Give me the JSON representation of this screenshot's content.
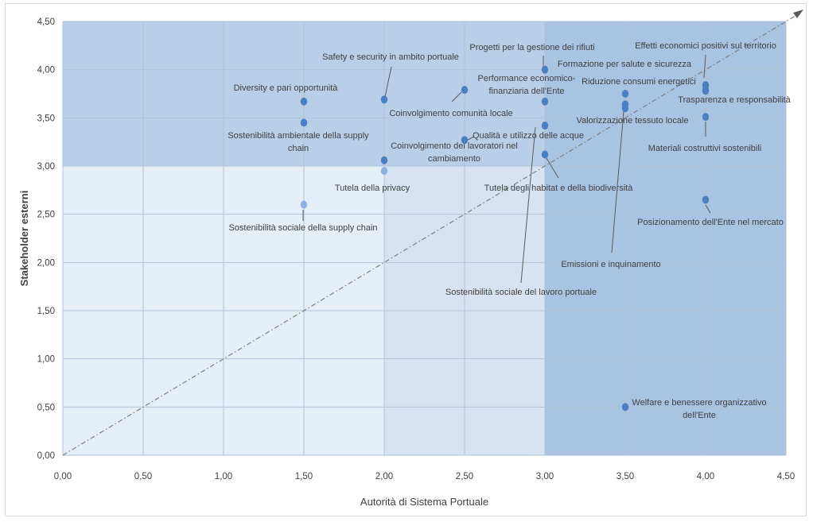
{
  "chart_data": {
    "type": "scatter",
    "xlabel": "Autorità di Sistema Portuale",
    "ylabel": "Stakeholder esterni",
    "xlim": [
      0,
      4.5
    ],
    "ylim": [
      0,
      4.5
    ],
    "x_ticks": [
      "0,00",
      "0,50",
      "1,00",
      "1,50",
      "2,00",
      "2,50",
      "3,00",
      "3,50",
      "4,00",
      "4,50"
    ],
    "y_ticks": [
      "0,00",
      "0,50",
      "1,00",
      "1,50",
      "2,00",
      "2,50",
      "3,00",
      "3,50",
      "4,00",
      "4,50"
    ],
    "grid": true,
    "diagonal_reference_line": true,
    "colors": {
      "background_light": "#e6eef8",
      "band_medium": "#c7d8ec",
      "band_dark": "#a9c3e2",
      "point": "#4a7fc1",
      "point_light": "#8cb2e0",
      "grid": "#b0c2d6",
      "diagonal": "#7f7f7f"
    },
    "points": [
      {
        "label": "Diversity e pari opportunità",
        "x": 1.5,
        "y": 3.67
      },
      {
        "label": "Sostenibilità ambientale della supply chain",
        "x": 1.5,
        "y": 3.45
      },
      {
        "label": "Sostenibilità sociale della supply chain",
        "x": 1.5,
        "y": 2.6
      },
      {
        "label": "Safety e security in ambito portuale",
        "x": 2.0,
        "y": 3.69
      },
      {
        "label": "Coinvolgimento dei lavoratori nel cambiamento",
        "x": 2.0,
        "y": 3.06
      },
      {
        "label": "Tutela della privacy",
        "x": 2.0,
        "y": 2.95
      },
      {
        "label": "Coinvolgimento comunità locale",
        "x": 2.5,
        "y": 3.79
      },
      {
        "label": "Qualità e utilizzo delle acque",
        "x": 2.5,
        "y": 3.27
      },
      {
        "label": "Progetti per la gestione dei rifiuti",
        "x": 3.0,
        "y": 4.0
      },
      {
        "label": "Performance economico-finanziaria dell'Ente",
        "x": 3.0,
        "y": 3.67
      },
      {
        "label": "Sostenibilità sociale del lavoro portuale",
        "x": 3.0,
        "y": 3.42
      },
      {
        "label": "Tutela degli habitat e della biodiversità",
        "x": 3.0,
        "y": 3.12
      },
      {
        "label": "Formazione per salute e sicurezza",
        "x": 3.5,
        "y": 3.75
      },
      {
        "label": "Valorizzazione tessuto locale",
        "x": 3.5,
        "y": 3.64
      },
      {
        "label": "Emissioni e inquinamento",
        "x": 3.5,
        "y": 3.6
      },
      {
        "label": "Welfare e benessere organizzativo dell'Ente",
        "x": 3.5,
        "y": 0.5
      },
      {
        "label": "Effetti economici positivi sul territorio",
        "x": 4.0,
        "y": 3.84
      },
      {
        "label": "Riduzione consumi energetici",
        "x": 4.0,
        "y": 3.79
      },
      {
        "label": "Trasparenza e responsabilità",
        "x": 4.0,
        "y": 3.78
      },
      {
        "label": "Materiali costruttivi sostenibili",
        "x": 4.0,
        "y": 3.51
      },
      {
        "label": "Posizionamento dell'Ente nel mercato",
        "x": 4.0,
        "y": 2.65
      }
    ]
  }
}
